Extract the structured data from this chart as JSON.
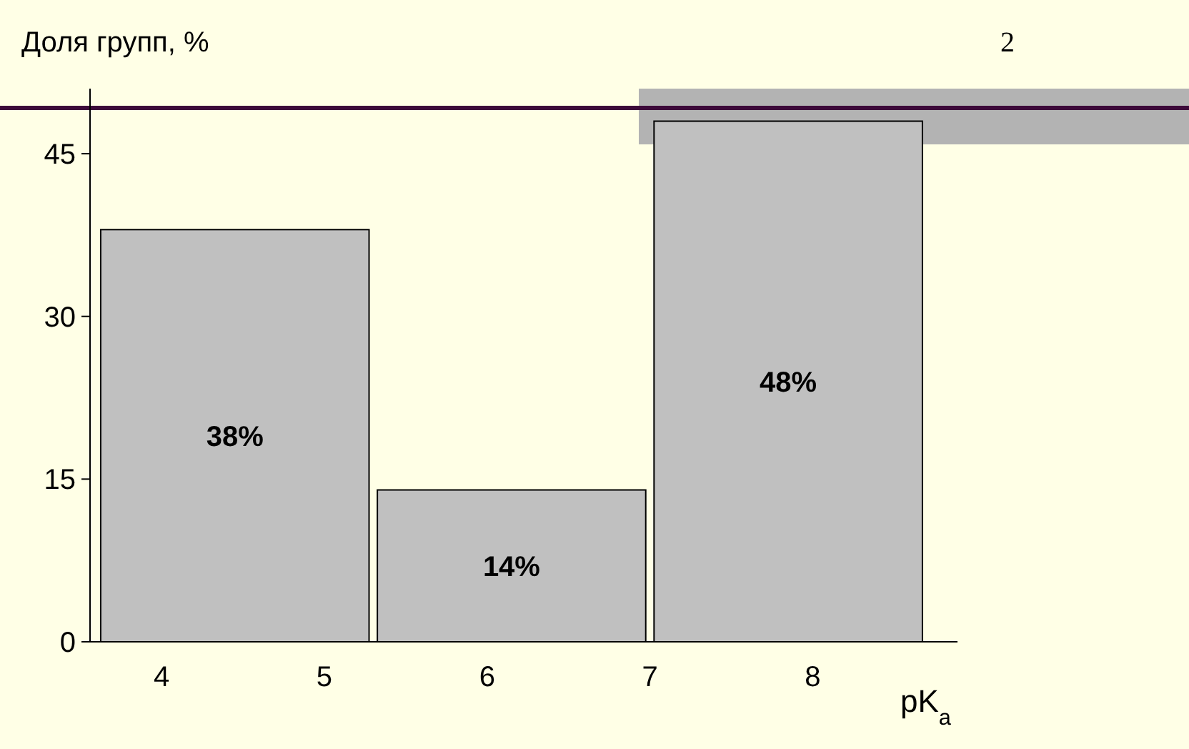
{
  "chart_data": {
    "type": "bar",
    "ylabel": "Доля групп, %",
    "xlabel": "pK$_{a}$",
    "annotations": [
      "2"
    ],
    "x": [
      4.45,
      6.15,
      7.85
    ],
    "values": [
      38,
      14,
      48
    ],
    "value_labels": [
      "38%",
      "14%",
      "48%"
    ],
    "color": "#c0c0c0",
    "xlim": [
      3.56,
      8.89
    ],
    "xticks": [
      4,
      5,
      6,
      7,
      8
    ],
    "ylim": [
      0,
      51
    ],
    "yticks": [
      0,
      15,
      30,
      45
    ],
    "grid": false
  }
}
